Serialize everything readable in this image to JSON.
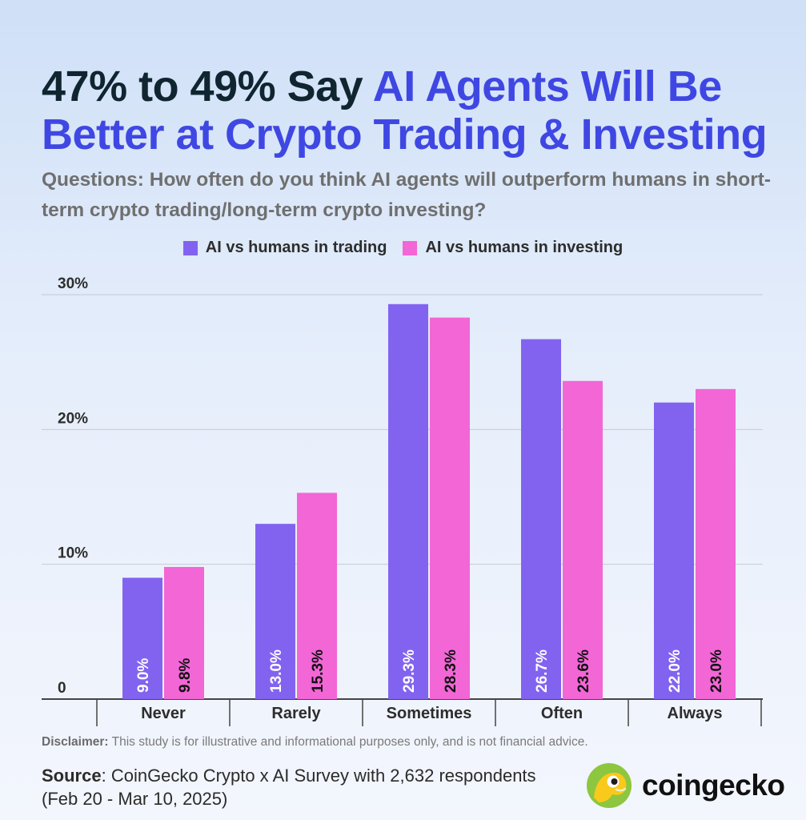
{
  "title": {
    "part1": "47% to 49% Say",
    "part2": "AI Agents Will Be Better at Crypto Trading & Investing"
  },
  "subtitle": "Questions: How often do you think AI agents will outperform humans in short-term crypto trading/long-term crypto investing?",
  "colors": {
    "trading": "#8263f0",
    "investing": "#f266d6",
    "title_dark": "#0f2530",
    "title_accent": "#3f47e3"
  },
  "chart_data": {
    "type": "bar",
    "categories": [
      "Never",
      "Rarely",
      "Sometimes",
      "Often",
      "Always"
    ],
    "series": [
      {
        "name": "AI vs humans in trading",
        "values": [
          9.0,
          13.0,
          29.3,
          26.7,
          22.0
        ],
        "labels": [
          "9.0%",
          "13.0%",
          "29.3%",
          "26.7%",
          "22.0%"
        ]
      },
      {
        "name": "AI vs humans in investing",
        "values": [
          9.8,
          15.3,
          28.3,
          23.6,
          23.0
        ],
        "labels": [
          "9.8%",
          "15.3%",
          "28.3%",
          "23.6%",
          "23.0%"
        ]
      }
    ],
    "y_ticks": [
      0,
      10,
      20,
      30
    ],
    "y_tick_labels": [
      "0",
      "10%",
      "20%",
      "30%"
    ],
    "ylim": [
      0,
      30
    ],
    "grid": true,
    "legend": "top-center"
  },
  "disclaimer": {
    "label": "Disclaimer:",
    "text": "This study is for illustrative and informational purposes only, and is not financial advice."
  },
  "source": {
    "label": "Source",
    "text": "CoinGecko Crypto x AI Survey with 2,632 respondents (Feb 20 - Mar 10, 2025)"
  },
  "logo": {
    "word": "coingecko"
  }
}
